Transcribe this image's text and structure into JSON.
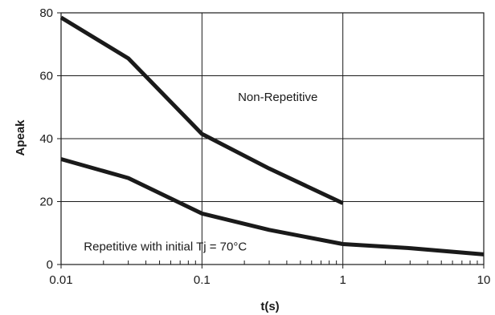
{
  "chart_data": {
    "type": "line",
    "title": "",
    "xlabel": "t(s)",
    "ylabel": "Apeak",
    "x_scale": "log",
    "xlim": [
      0.01,
      10
    ],
    "ylim": [
      0,
      80
    ],
    "x_ticks": [
      0.01,
      0.1,
      1,
      10
    ],
    "x_tick_labels": [
      "0.01",
      "0.1",
      "1",
      "10"
    ],
    "y_ticks": [
      0,
      20,
      40,
      60,
      80
    ],
    "y_tick_labels": [
      "0",
      "20",
      "40",
      "60",
      "80"
    ],
    "grid": true,
    "series": [
      {
        "x": [
          0.01,
          0.03,
          0.1,
          0.3,
          1
        ],
        "y": [
          78.5,
          65.5,
          41.5,
          30.5,
          19.5
        ]
      },
      {
        "x": [
          0.01,
          0.03,
          0.1,
          0.3,
          1,
          3,
          10
        ],
        "y": [
          33.5,
          27.5,
          16.2,
          11.0,
          6.5,
          5.2,
          3.2
        ]
      }
    ],
    "annotations": [
      {
        "text": "Non-Repetitive",
        "x": 0.18,
        "y": 52
      },
      {
        "text": "Repetitive with initial Tj = 70°C",
        "x": 0.0145,
        "y": 4.5
      }
    ],
    "colors": {
      "line": "#1a1a1a",
      "grid": "#1a1a1a",
      "background": "#ffffff"
    }
  }
}
